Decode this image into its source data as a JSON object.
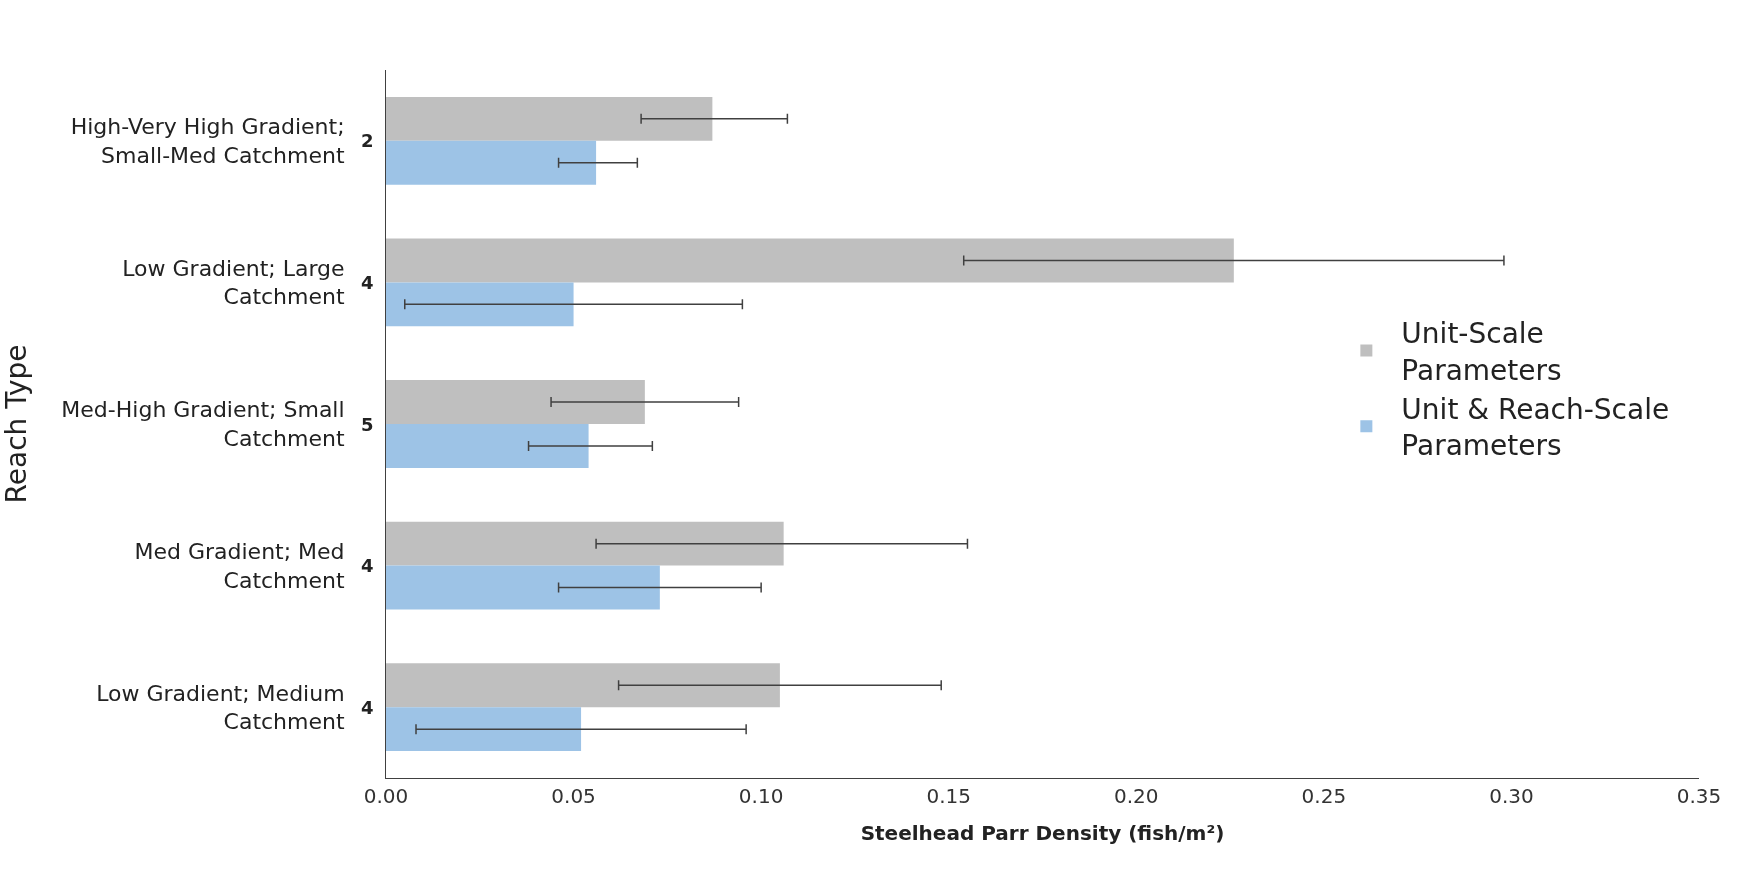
{
  "chart_data": {
    "type": "bar",
    "orientation": "horizontal",
    "xlabel": "Steelhead Parr Density (fish/m²)",
    "ylabel": "Reach Type",
    "categories": [
      "High-Very High Gradient; Small-Med Catchment",
      "Low Gradient; Large Catchment",
      "Med-High Gradient; Small Catchment",
      "Med Gradient; Med Catchment",
      "Low Gradient; Medium Catchment"
    ],
    "series": [
      {
        "name": "Unit-Scale Parameters",
        "color": "#bfbfbf",
        "values": [
          0.087,
          0.226,
          0.069,
          0.106,
          0.105
        ],
        "errors": [
          [
            0.068,
            0.107
          ],
          [
            0.154,
            0.298
          ],
          [
            0.044,
            0.094
          ],
          [
            0.056,
            0.155
          ],
          [
            0.062,
            0.148
          ]
        ]
      },
      {
        "name": "Unit & Reach-Scale Parameters",
        "color": "#9dc3e6",
        "values": [
          0.056,
          0.05,
          0.054,
          0.073,
          0.052
        ],
        "errors": [
          [
            0.046,
            0.067
          ],
          [
            0.005,
            0.095
          ],
          [
            0.038,
            0.071
          ],
          [
            0.046,
            0.1
          ],
          [
            0.008,
            0.096
          ]
        ]
      }
    ],
    "annotations": [
      "2",
      "4",
      "5",
      "4",
      "4"
    ],
    "xlim": [
      0,
      0.35
    ],
    "xticks": [
      {
        "value": 0,
        "label": "0.00"
      },
      {
        "value": 0.05,
        "label": "0.05"
      },
      {
        "value": 0.1,
        "label": "0.10"
      },
      {
        "value": 0.15,
        "label": "0.15"
      },
      {
        "value": 0.2,
        "label": "0.20"
      },
      {
        "value": 0.25,
        "label": "0.25"
      },
      {
        "value": 0.3,
        "label": "0.30"
      },
      {
        "value": 0.35,
        "label": "0.35"
      }
    ],
    "grid": false,
    "legend": "right"
  }
}
